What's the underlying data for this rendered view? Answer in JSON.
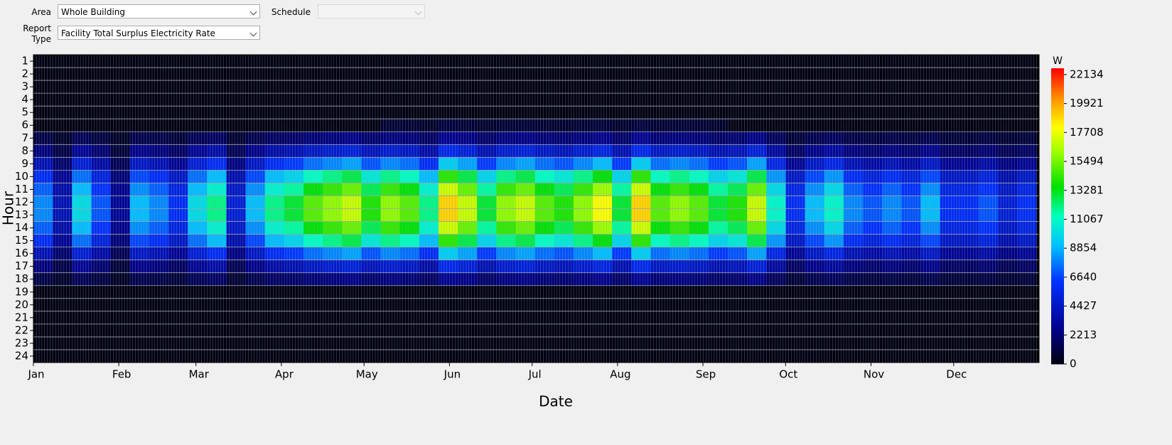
{
  "controls": {
    "area_label": "Area",
    "area_value": "Whole Building",
    "schedule_label": "Schedule",
    "report_label": "Report Type",
    "report_value": "Facility Total Surplus Electricity Rate"
  },
  "chart_data": {
    "type": "heatmap",
    "x_label": "Date",
    "y_label": "Hour",
    "colorbar_label": "W",
    "colormap": "jet",
    "xlim": [
      1,
      366
    ],
    "xticks": [
      {
        "value": 1,
        "label": "Jan"
      },
      {
        "value": 32,
        "label": "Feb"
      },
      {
        "value": 60,
        "label": "Mar"
      },
      {
        "value": 91,
        "label": "Apr"
      },
      {
        "value": 121,
        "label": "May"
      },
      {
        "value": 152,
        "label": "Jun"
      },
      {
        "value": 182,
        "label": "Jul"
      },
      {
        "value": 213,
        "label": "Aug"
      },
      {
        "value": 244,
        "label": "Sep"
      },
      {
        "value": 274,
        "label": "Oct"
      },
      {
        "value": 305,
        "label": "Nov"
      },
      {
        "value": 335,
        "label": "Dec"
      }
    ],
    "y": [
      1,
      2,
      3,
      4,
      5,
      6,
      7,
      8,
      9,
      10,
      11,
      12,
      13,
      14,
      15,
      16,
      17,
      18,
      19,
      20,
      21,
      22,
      23,
      24
    ],
    "x_bins": [
      1,
      8,
      15,
      22,
      29,
      36,
      43,
      50,
      57,
      64,
      71,
      78,
      85,
      92,
      99,
      106,
      113,
      120,
      127,
      134,
      141,
      148,
      155,
      162,
      169,
      176,
      183,
      190,
      197,
      204,
      211,
      218,
      225,
      232,
      239,
      246,
      253,
      260,
      267,
      274,
      281,
      288,
      295,
      302,
      309,
      316,
      323,
      330,
      337,
      344,
      351,
      358,
      365
    ],
    "clim": [
      0,
      22620
    ],
    "cticks": [
      0,
      2213,
      4427,
      6640,
      8854,
      11067,
      13281,
      15494,
      17708,
      19921,
      22134
    ],
    "z": [
      [
        0,
        0,
        0,
        0,
        0,
        0,
        0,
        0,
        0,
        0,
        0,
        0,
        0,
        0,
        0,
        0,
        0,
        0,
        0,
        0,
        0,
        0,
        0,
        0,
        0,
        0,
        0,
        0,
        0,
        0,
        0,
        0,
        0,
        0,
        0,
        0,
        0,
        0,
        0,
        0,
        0,
        0,
        0,
        0,
        0,
        0,
        0,
        0,
        0,
        0,
        0,
        0
      ],
      [
        0,
        0,
        0,
        0,
        0,
        0,
        0,
        0,
        0,
        0,
        0,
        0,
        0,
        0,
        0,
        0,
        0,
        0,
        0,
        0,
        0,
        0,
        0,
        0,
        0,
        0,
        0,
        0,
        0,
        0,
        0,
        0,
        0,
        0,
        0,
        0,
        0,
        0,
        0,
        0,
        0,
        0,
        0,
        0,
        0,
        0,
        0,
        0,
        0,
        0,
        0,
        0
      ],
      [
        0,
        0,
        0,
        0,
        0,
        0,
        0,
        0,
        0,
        0,
        0,
        0,
        0,
        0,
        0,
        0,
        0,
        0,
        0,
        0,
        0,
        0,
        0,
        0,
        0,
        0,
        0,
        0,
        0,
        0,
        0,
        0,
        0,
        0,
        0,
        0,
        0,
        0,
        0,
        0,
        0,
        0,
        0,
        0,
        0,
        0,
        0,
        0,
        0,
        0,
        0,
        0
      ],
      [
        0,
        0,
        0,
        0,
        0,
        0,
        0,
        0,
        0,
        0,
        0,
        0,
        0,
        0,
        0,
        0,
        0,
        0,
        0,
        0,
        0,
        0,
        0,
        0,
        0,
        0,
        0,
        0,
        0,
        0,
        0,
        0,
        0,
        0,
        0,
        0,
        0,
        0,
        0,
        0,
        0,
        0,
        0,
        0,
        0,
        0,
        0,
        0,
        0,
        0,
        0,
        0
      ],
      [
        0,
        0,
        0,
        0,
        0,
        0,
        0,
        0,
        0,
        0,
        0,
        0,
        0,
        0,
        0,
        0,
        0,
        0,
        0,
        0,
        0,
        0,
        0,
        0,
        0,
        0,
        0,
        0,
        0,
        0,
        0,
        0,
        0,
        0,
        0,
        0,
        0,
        0,
        0,
        0,
        0,
        0,
        0,
        0,
        0,
        0,
        0,
        0,
        0,
        0,
        0,
        0
      ],
      [
        0,
        0,
        0,
        0,
        0,
        0,
        0,
        0,
        0,
        0,
        0,
        0,
        0,
        0,
        0,
        0,
        0,
        0,
        800,
        750,
        600,
        950,
        850,
        650,
        800,
        850,
        750,
        700,
        800,
        900,
        650,
        950,
        750,
        800,
        750,
        650,
        0,
        0,
        0,
        0,
        0,
        0,
        0,
        0,
        0,
        0,
        0,
        0,
        0,
        0,
        0,
        0
      ],
      [
        1200,
        600,
        1500,
        1050,
        450,
        1350,
        1200,
        900,
        1500,
        1800,
        750,
        1350,
        1800,
        1950,
        2250,
        2400,
        2550,
        2100,
        2400,
        2250,
        1800,
        2850,
        2550,
        1950,
        2400,
        2550,
        2250,
        2100,
        2400,
        2700,
        1950,
        2850,
        2250,
        2400,
        2250,
        1950,
        2100,
        2550,
        1650,
        900,
        1350,
        1650,
        1200,
        1050,
        1200,
        1050,
        1350,
        900,
        900,
        1050,
        750,
        900
      ],
      [
        2400,
        1200,
        3000,
        2100,
        900,
        2700,
        2400,
        1800,
        3000,
        3600,
        1500,
        2700,
        3600,
        3900,
        4500,
        4800,
        5100,
        4200,
        4800,
        4500,
        3600,
        5700,
        5100,
        3900,
        4800,
        5100,
        4500,
        4200,
        4800,
        5400,
        3900,
        5700,
        4500,
        4800,
        4500,
        3900,
        4200,
        5100,
        3300,
        1800,
        2700,
        3300,
        2400,
        2100,
        2400,
        2100,
        2700,
        1800,
        1800,
        2100,
        1500,
        1800
      ],
      [
        4000,
        2000,
        5000,
        3500,
        1500,
        4500,
        4000,
        3000,
        5000,
        6000,
        2500,
        4500,
        6000,
        6500,
        7500,
        8000,
        8500,
        7000,
        8000,
        7500,
        6000,
        9500,
        8500,
        6500,
        8000,
        8500,
        7500,
        7000,
        8000,
        9000,
        6500,
        9500,
        7500,
        8000,
        7500,
        6500,
        7000,
        8500,
        5500,
        3000,
        4500,
        5500,
        4000,
        3500,
        4000,
        3500,
        4500,
        3000,
        3000,
        3500,
        2500,
        3000
      ],
      [
        6000,
        3000,
        7500,
        5250,
        2250,
        6750,
        6000,
        4500,
        7500,
        9000,
        3750,
        6750,
        9000,
        9750,
        11250,
        12000,
        12750,
        10500,
        12000,
        11250,
        9000,
        14250,
        12750,
        9750,
        12000,
        12750,
        11250,
        10500,
        12000,
        13500,
        9750,
        14250,
        11250,
        12000,
        11250,
        9750,
        10500,
        12750,
        8250,
        4500,
        6750,
        8250,
        6000,
        5250,
        6000,
        5250,
        6750,
        4500,
        4500,
        5250,
        3750,
        4500
      ],
      [
        7200,
        3600,
        9000,
        6300,
        2700,
        8100,
        7200,
        5400,
        9000,
        10800,
        4500,
        8100,
        10800,
        11700,
        13500,
        14400,
        15300,
        12600,
        14400,
        13500,
        10800,
        17100,
        15300,
        11700,
        14400,
        15300,
        13500,
        12600,
        14400,
        16200,
        11700,
        17100,
        13500,
        14400,
        13500,
        11700,
        12600,
        15300,
        9900,
        5400,
        8100,
        9900,
        7200,
        6300,
        7200,
        6300,
        8100,
        5400,
        5400,
        6300,
        4500,
        5400
      ],
      [
        8000,
        4000,
        10000,
        7000,
        3000,
        9000,
        8000,
        6000,
        10000,
        12000,
        5000,
        9000,
        12000,
        13000,
        15000,
        16000,
        17000,
        14000,
        16000,
        15000,
        12000,
        19000,
        17000,
        13000,
        16000,
        17000,
        15000,
        14000,
        16000,
        18000,
        13000,
        19000,
        15000,
        16000,
        15000,
        13000,
        14000,
        17000,
        11000,
        6000,
        9000,
        11000,
        8000,
        7000,
        8000,
        7000,
        9000,
        6000,
        6000,
        7000,
        5000,
        6000
      ],
      [
        8000,
        4000,
        10000,
        7000,
        3000,
        9000,
        8000,
        6000,
        10000,
        12000,
        5000,
        9000,
        12000,
        13000,
        15000,
        16000,
        17000,
        14000,
        16000,
        15000,
        12000,
        19000,
        17000,
        13000,
        16000,
        17000,
        15000,
        14000,
        16000,
        18000,
        13000,
        19000,
        15000,
        16000,
        15000,
        13000,
        14000,
        17000,
        11000,
        6000,
        9000,
        11000,
        8000,
        7000,
        8000,
        7000,
        9000,
        6000,
        6000,
        7000,
        5000,
        6000
      ],
      [
        7200,
        3600,
        9000,
        6300,
        2700,
        8100,
        7200,
        5400,
        9000,
        10800,
        4500,
        8100,
        10800,
        11700,
        13500,
        14400,
        15300,
        12600,
        14400,
        13500,
        10800,
        17100,
        15300,
        11700,
        14400,
        15300,
        13500,
        12600,
        14400,
        16200,
        11700,
        17100,
        13500,
        14400,
        13500,
        11700,
        12600,
        15300,
        9900,
        5400,
        8100,
        9900,
        7200,
        6300,
        7200,
        6300,
        8100,
        5400,
        5400,
        6300,
        4500,
        5400
      ],
      [
        6000,
        3000,
        7500,
        5250,
        2250,
        6750,
        6000,
        4500,
        7500,
        9000,
        3750,
        6750,
        9000,
        9750,
        11250,
        12000,
        12750,
        10500,
        12000,
        11250,
        9000,
        14250,
        12750,
        9750,
        12000,
        12750,
        11250,
        10500,
        12000,
        13500,
        9750,
        14250,
        11250,
        12000,
        11250,
        9750,
        10500,
        12750,
        8250,
        4500,
        6750,
        8250,
        6000,
        5250,
        6000,
        5250,
        6750,
        4500,
        4500,
        5250,
        3750,
        4500
      ],
      [
        4000,
        2000,
        5000,
        3500,
        1500,
        4500,
        4000,
        3000,
        5000,
        6000,
        2500,
        4500,
        6000,
        6500,
        7500,
        8000,
        8500,
        7000,
        8000,
        7500,
        6000,
        9500,
        8500,
        6500,
        8000,
        8500,
        7500,
        7000,
        8000,
        9000,
        6500,
        9500,
        7500,
        8000,
        7500,
        6500,
        7000,
        8500,
        5500,
        3000,
        4500,
        5500,
        4000,
        3500,
        4000,
        3500,
        4500,
        3000,
        3000,
        3500,
        2500,
        3000
      ],
      [
        2400,
        1200,
        3000,
        2100,
        900,
        2700,
        2400,
        1800,
        3000,
        3600,
        1500,
        2700,
        3600,
        3900,
        4500,
        4800,
        5100,
        4200,
        4800,
        4500,
        3600,
        5700,
        5100,
        3900,
        4800,
        5100,
        4500,
        4200,
        4800,
        5400,
        3900,
        5700,
        4500,
        4800,
        4500,
        3900,
        4200,
        5100,
        3300,
        1800,
        2700,
        3300,
        2400,
        2100,
        2400,
        2100,
        2700,
        1800,
        1800,
        2100,
        1500,
        1800
      ],
      [
        1200,
        600,
        1500,
        1050,
        450,
        1350,
        1200,
        900,
        1500,
        1800,
        750,
        1350,
        1800,
        1950,
        2250,
        2400,
        2550,
        2100,
        2400,
        2250,
        1800,
        2850,
        2550,
        1950,
        2400,
        2550,
        2250,
        2100,
        2400,
        2700,
        1950,
        2850,
        2250,
        2400,
        2250,
        1950,
        2100,
        2550,
        1650,
        900,
        1350,
        1650,
        1200,
        1050,
        1200,
        1050,
        1350,
        900,
        900,
        1050,
        750,
        900
      ],
      [
        0,
        0,
        0,
        0,
        0,
        0,
        0,
        0,
        0,
        0,
        0,
        0,
        0,
        0,
        0,
        0,
        0,
        0,
        0,
        0,
        0,
        0,
        0,
        0,
        0,
        0,
        0,
        0,
        0,
        0,
        0,
        0,
        0,
        0,
        0,
        0,
        0,
        0,
        0,
        0,
        0,
        0,
        0,
        0,
        0,
        0,
        0,
        0,
        0,
        0,
        0,
        0
      ],
      [
        0,
        0,
        0,
        0,
        0,
        0,
        0,
        0,
        0,
        0,
        0,
        0,
        0,
        0,
        0,
        0,
        0,
        0,
        0,
        0,
        0,
        0,
        0,
        0,
        0,
        0,
        0,
        0,
        0,
        0,
        0,
        0,
        0,
        0,
        0,
        0,
        0,
        0,
        0,
        0,
        0,
        0,
        0,
        0,
        0,
        0,
        0,
        0,
        0,
        0,
        0,
        0
      ],
      [
        0,
        0,
        0,
        0,
        0,
        0,
        0,
        0,
        0,
        0,
        0,
        0,
        0,
        0,
        0,
        0,
        0,
        0,
        0,
        0,
        0,
        0,
        0,
        0,
        0,
        0,
        0,
        0,
        0,
        0,
        0,
        0,
        0,
        0,
        0,
        0,
        0,
        0,
        0,
        0,
        0,
        0,
        0,
        0,
        0,
        0,
        0,
        0,
        0,
        0,
        0,
        0
      ],
      [
        0,
        0,
        0,
        0,
        0,
        0,
        0,
        0,
        0,
        0,
        0,
        0,
        0,
        0,
        0,
        0,
        0,
        0,
        0,
        0,
        0,
        0,
        0,
        0,
        0,
        0,
        0,
        0,
        0,
        0,
        0,
        0,
        0,
        0,
        0,
        0,
        0,
        0,
        0,
        0,
        0,
        0,
        0,
        0,
        0,
        0,
        0,
        0,
        0,
        0,
        0,
        0
      ],
      [
        0,
        0,
        0,
        0,
        0,
        0,
        0,
        0,
        0,
        0,
        0,
        0,
        0,
        0,
        0,
        0,
        0,
        0,
        0,
        0,
        0,
        0,
        0,
        0,
        0,
        0,
        0,
        0,
        0,
        0,
        0,
        0,
        0,
        0,
        0,
        0,
        0,
        0,
        0,
        0,
        0,
        0,
        0,
        0,
        0,
        0,
        0,
        0,
        0,
        0,
        0,
        0
      ],
      [
        0,
        0,
        0,
        0,
        0,
        0,
        0,
        0,
        0,
        0,
        0,
        0,
        0,
        0,
        0,
        0,
        0,
        0,
        0,
        0,
        0,
        0,
        0,
        0,
        0,
        0,
        0,
        0,
        0,
        0,
        0,
        0,
        0,
        0,
        0,
        0,
        0,
        0,
        0,
        0,
        0,
        0,
        0,
        0,
        0,
        0,
        0,
        0,
        0,
        0,
        0,
        0
      ]
    ]
  }
}
